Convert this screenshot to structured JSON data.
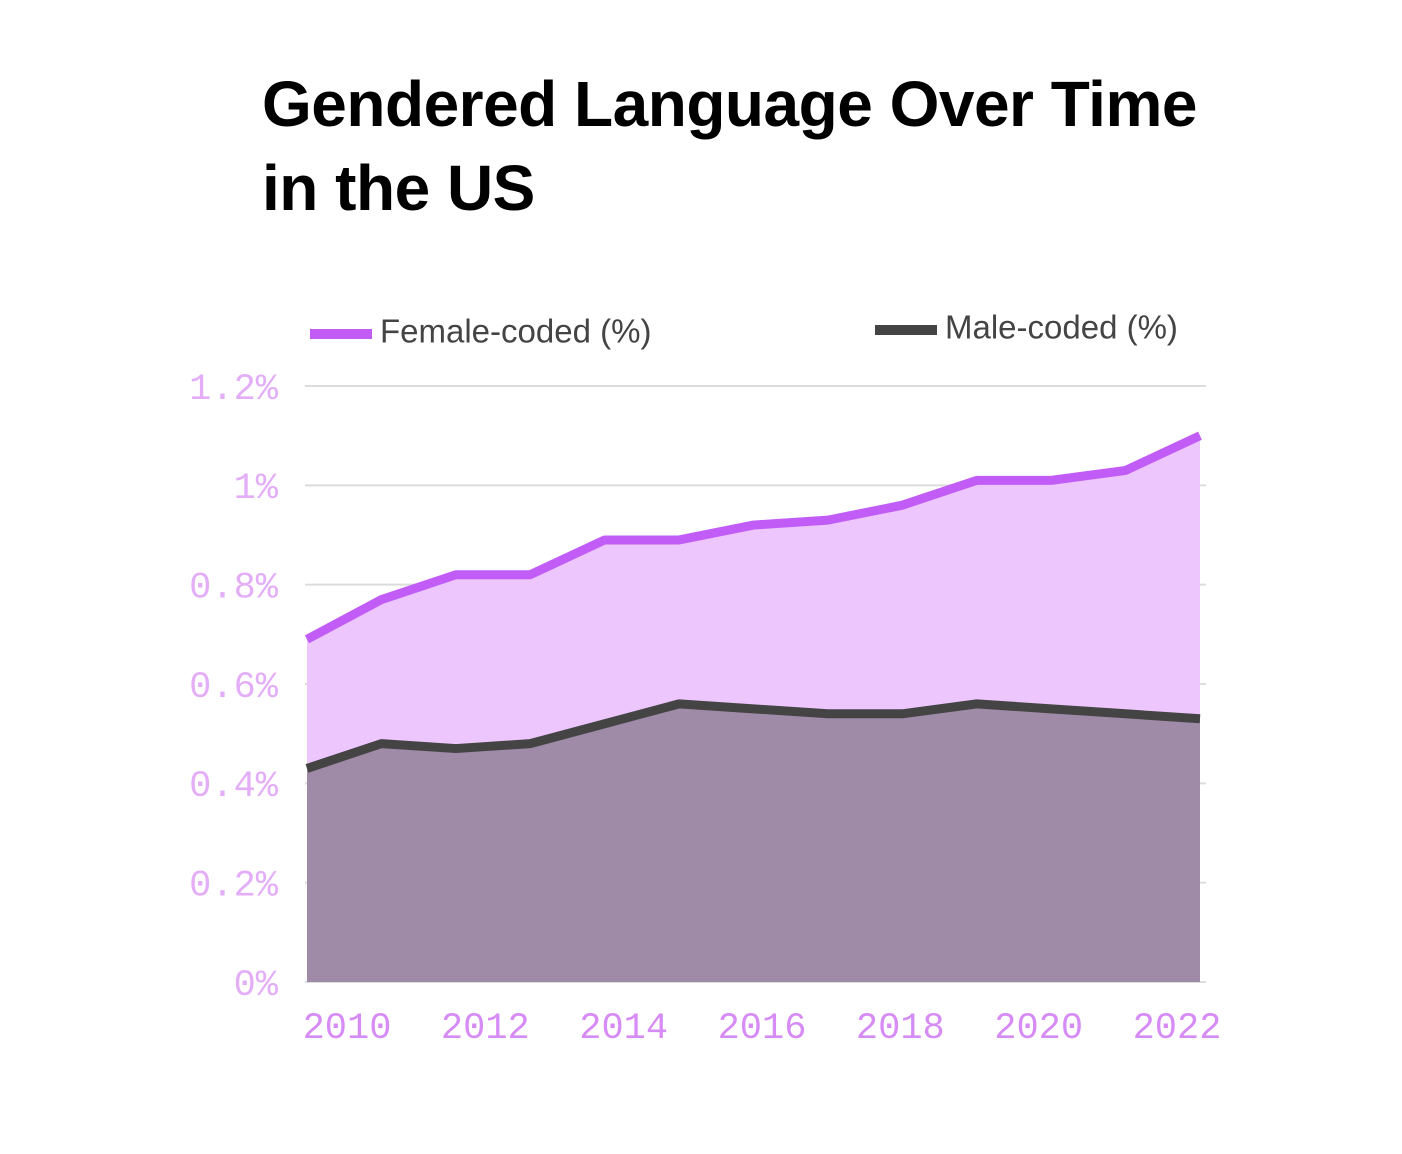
{
  "chart_data": {
    "type": "area",
    "title": "Gendered Language Over Time in the US",
    "x": [
      2010,
      2011,
      2012,
      2013,
      2014,
      2015,
      2016,
      2017,
      2018,
      2019,
      2020,
      2021,
      2022
    ],
    "series": [
      {
        "name": "Female-coded (%)",
        "color": "#c25cf6",
        "fill_color": "#ecc6fc",
        "values": [
          0.69,
          0.77,
          0.82,
          0.82,
          0.89,
          0.89,
          0.92,
          0.93,
          0.96,
          1.01,
          1.01,
          1.03,
          1.1
        ]
      },
      {
        "name": "Male-coded (%)",
        "color": "#444444",
        "fill_color": "#9f8aa8",
        "values": [
          0.43,
          0.48,
          0.47,
          0.48,
          0.52,
          0.56,
          0.55,
          0.54,
          0.54,
          0.56,
          0.55,
          0.54,
          0.53
        ]
      }
    ],
    "xlim": [
      2010,
      2022
    ],
    "xticks": [
      2010,
      2012,
      2014,
      2016,
      2018,
      2020,
      2022
    ],
    "ylim": [
      0,
      1.2
    ],
    "yticks": [
      {
        "value": 0,
        "label": "0%"
      },
      {
        "value": 0.2,
        "label": "0.2%"
      },
      {
        "value": 0.4,
        "label": "0.4%"
      },
      {
        "value": 0.6,
        "label": "0.6%"
      },
      {
        "value": 0.8,
        "label": "0.8%"
      },
      {
        "value": 1,
        "label": "1%"
      },
      {
        "value": 1.2,
        "label": "1.2%"
      }
    ],
    "grid": true,
    "legend": "top"
  }
}
